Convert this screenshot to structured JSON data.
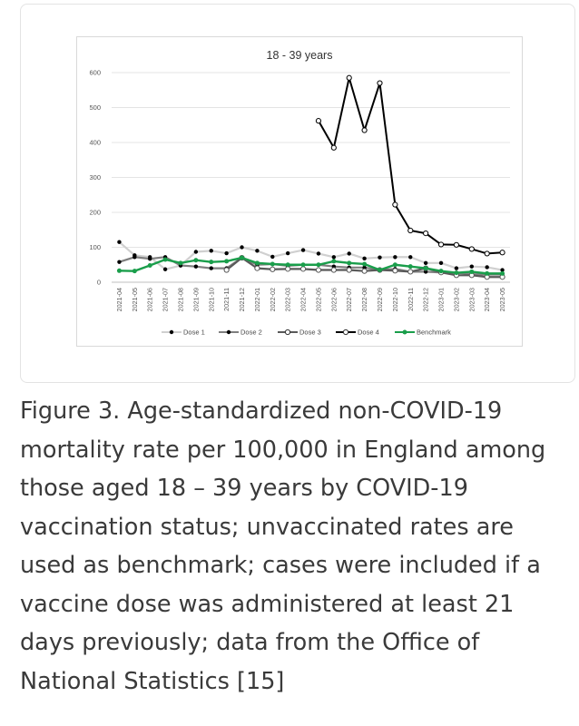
{
  "chart_data": {
    "type": "line",
    "title": "18 - 39 years",
    "xlabel": "",
    "ylabel": "",
    "ylim": [
      0,
      600
    ],
    "yticks": [
      0,
      100,
      200,
      300,
      400,
      500,
      600
    ],
    "grid": true,
    "legend_position": "bottom",
    "categories": [
      "2021-04",
      "2021-05",
      "2021-06",
      "2021-07",
      "2021-08",
      "2021-09",
      "2021-10",
      "2021-11",
      "2021-12",
      "2022-01",
      "2022-02",
      "2022-03",
      "2022-04",
      "2022-05",
      "2022-06",
      "2022-07",
      "2022-08",
      "2022-09",
      "2022-10",
      "2022-11",
      "2022-12",
      "2023-01",
      "2023-02",
      "2023-03",
      "2023-04",
      "2023-05"
    ],
    "series": [
      {
        "name": "Dose 1",
        "color": "#d0d0d0",
        "marker": "dot-black",
        "values": [
          115,
          77,
          72,
          37,
          48,
          87,
          90,
          83,
          100,
          90,
          73,
          83,
          92,
          82,
          72,
          82,
          68,
          71,
          72,
          72,
          55,
          55,
          40,
          45,
          43,
          35
        ]
      },
      {
        "name": "Dose 2",
        "color": "#7f7f7f",
        "marker": "dot-black",
        "values": [
          58,
          72,
          67,
          72,
          48,
          45,
          40,
          40,
          70,
          50,
          52,
          47,
          50,
          50,
          45,
          42,
          42,
          35,
          38,
          30,
          30,
          28,
          27,
          23,
          22,
          22
        ]
      },
      {
        "name": "Dose 3",
        "color": "#595959",
        "marker": "ring",
        "values": [
          null,
          null,
          null,
          null,
          null,
          null,
          null,
          35,
          70,
          40,
          37,
          38,
          38,
          35,
          35,
          35,
          32,
          35,
          33,
          30,
          40,
          28,
          20,
          20,
          15,
          15
        ]
      },
      {
        "name": "Dose 4",
        "color": "#000000",
        "marker": "ring",
        "values": [
          null,
          null,
          null,
          null,
          null,
          null,
          null,
          null,
          null,
          null,
          null,
          null,
          null,
          462,
          385,
          585,
          435,
          570,
          222,
          148,
          140,
          108,
          107,
          95,
          82,
          85
        ]
      },
      {
        "name": "Benchmark",
        "color": "#1a9e4b",
        "marker": "dot-green",
        "values": [
          33,
          32,
          48,
          65,
          55,
          63,
          58,
          60,
          70,
          55,
          52,
          50,
          50,
          50,
          60,
          55,
          52,
          35,
          50,
          45,
          40,
          32,
          27,
          30,
          25,
          25
        ]
      }
    ]
  },
  "caption": "Figure 3. Age-standardized non-COVID-19 mortality rate per 100,000 in England among those aged 18 – 39 years by COVID-19 vaccination status; unvaccinated rates are used as benchmark; cases were included if a vaccine dose was administered at least 21 days previously; data from the Office of National Statistics [15]"
}
